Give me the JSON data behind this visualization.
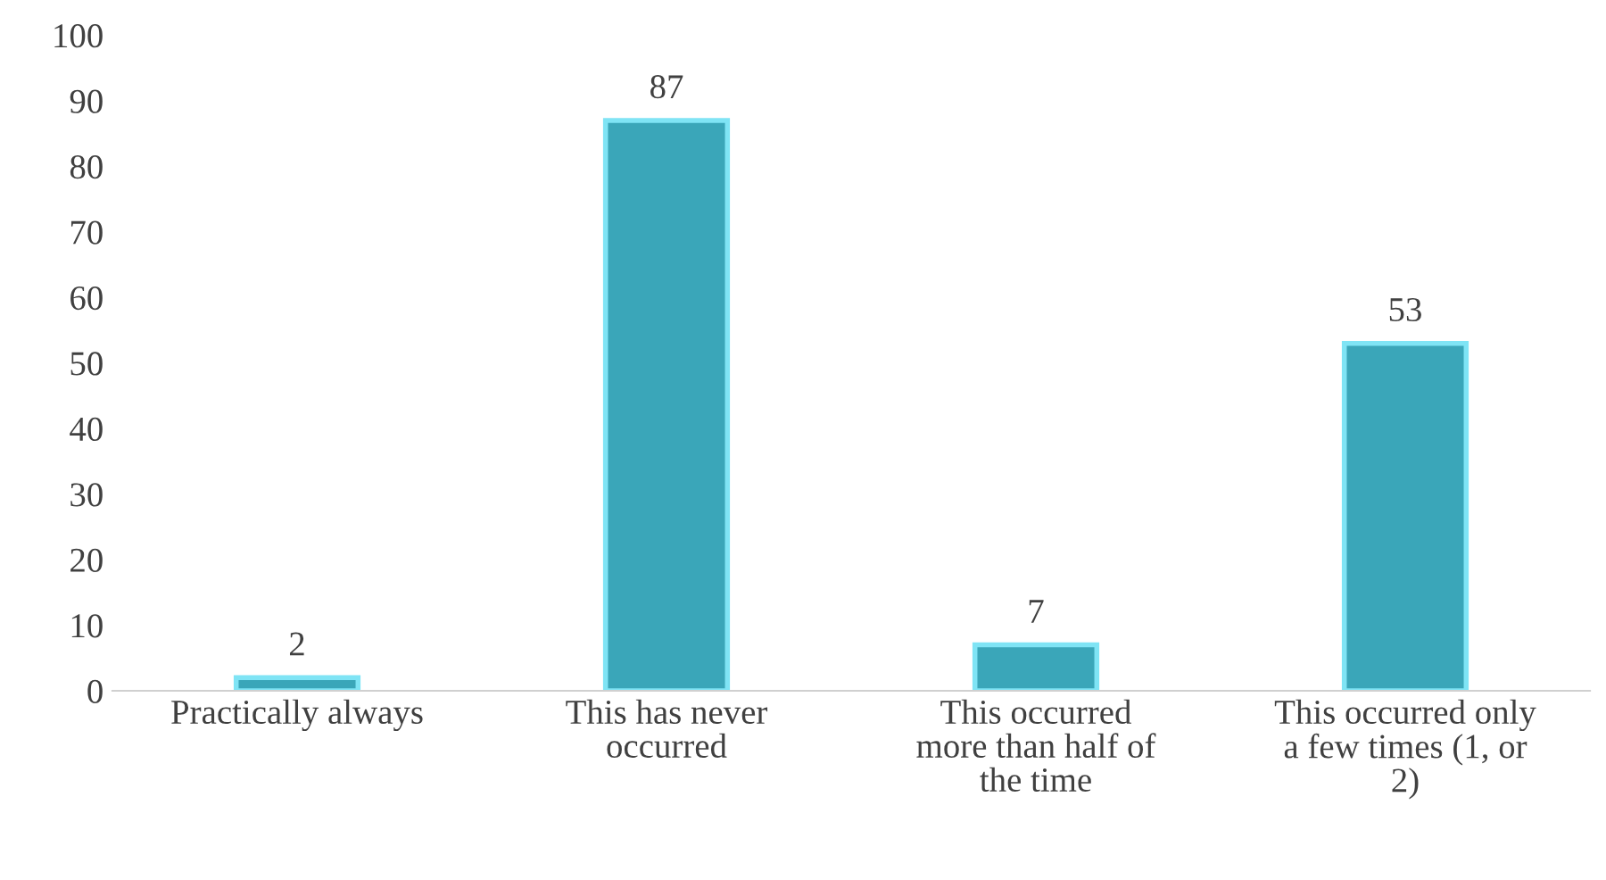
{
  "chart_data": {
    "type": "bar",
    "categories": [
      "Practically always",
      "This has never\noccurred",
      "This occurred\nmore than half of\nthe time",
      "This occurred only\na few times (1, or\n2)"
    ],
    "values": [
      2,
      87,
      7,
      53
    ],
    "color": "#3aa6b9",
    "ylim": [
      0,
      100
    ],
    "yticks": [
      0,
      10,
      20,
      30,
      40,
      50,
      60,
      70,
      80,
      90,
      100
    ],
    "data_labels": true,
    "grid": false,
    "legend": false
  }
}
